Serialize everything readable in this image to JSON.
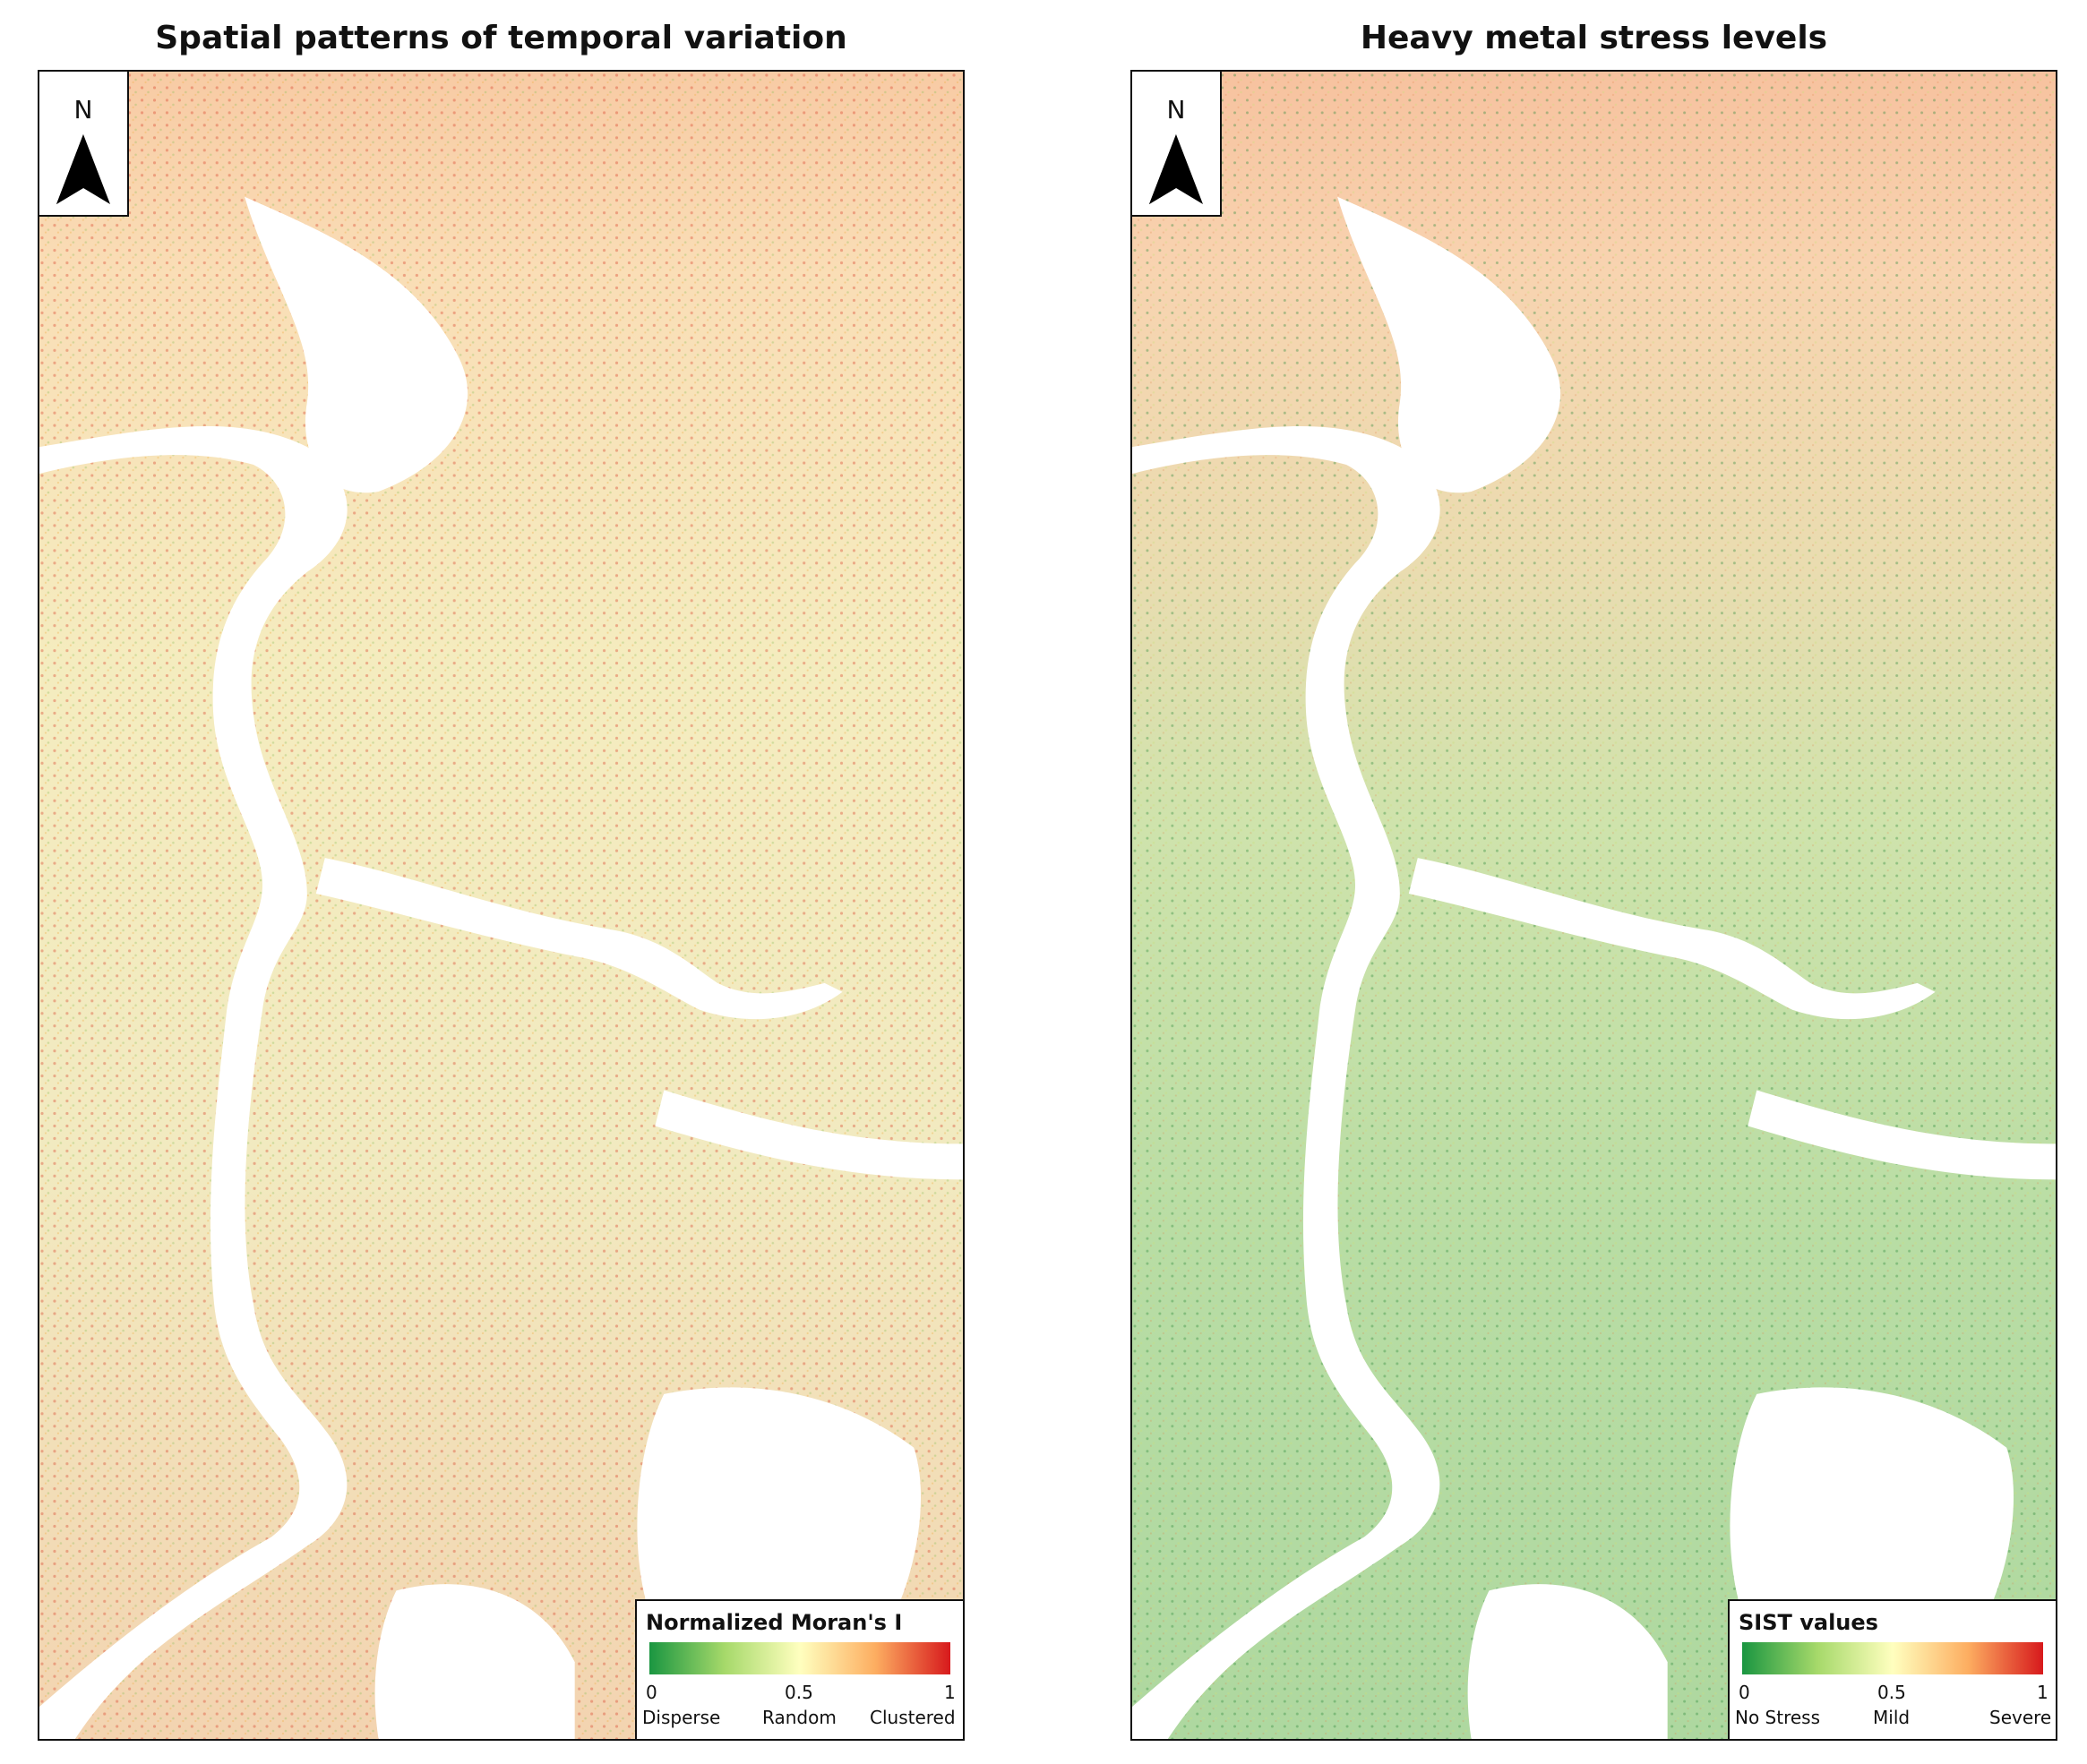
{
  "panels": [
    {
      "title": "Spatial patterns of temporal variation",
      "north_label": "N",
      "legend": {
        "title": "Normalized Moran's I",
        "ticks": [
          "0",
          "0.5",
          "1"
        ],
        "categories": [
          "Disperse",
          "Random",
          "Clustered"
        ]
      },
      "colors": {
        "low": "#1a9641",
        "mid": "#ffffbf",
        "high": "#d7191c",
        "dominant": "#e8d98a"
      }
    },
    {
      "title": "Heavy metal stress levels",
      "north_label": "N",
      "legend": {
        "title": "SIST values",
        "ticks": [
          "0",
          "0.5",
          "1"
        ],
        "categories": [
          "No Stress",
          "Mild",
          "Severe"
        ]
      },
      "colors": {
        "low": "#1a9641",
        "mid": "#ffffbf",
        "high": "#d7191c",
        "dominant": "#7fc15a"
      }
    }
  ]
}
